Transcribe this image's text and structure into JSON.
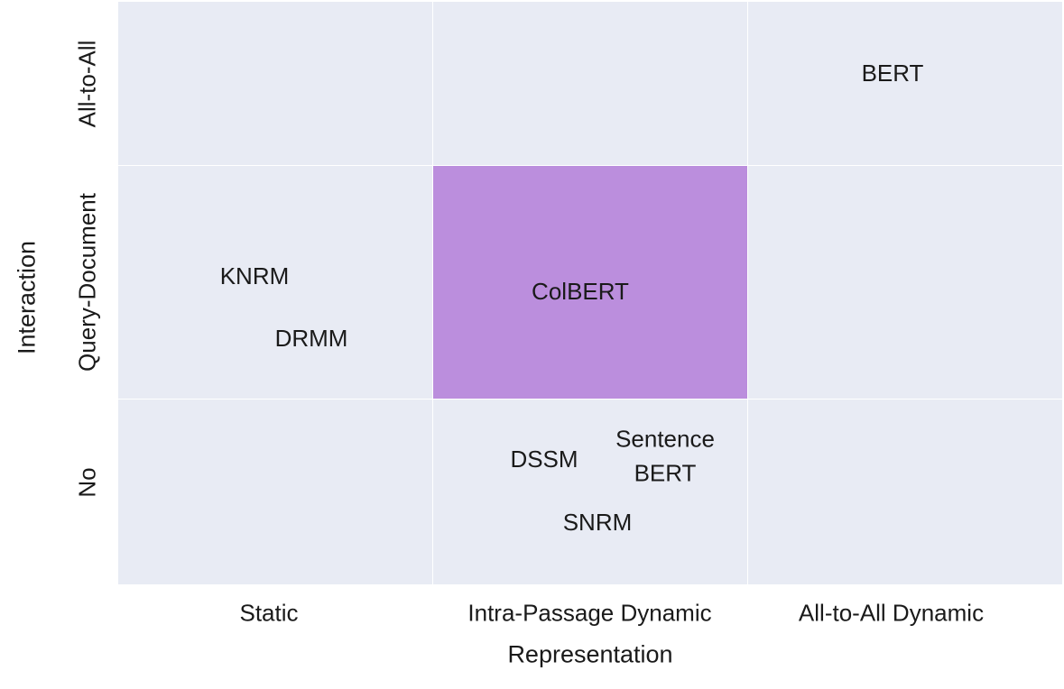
{
  "axes": {
    "x_title": "Representation",
    "y_title": "Interaction",
    "x_categories": [
      "Static",
      "Intra-Passage Dynamic",
      "All-to-All Dynamic"
    ],
    "y_categories": [
      "All-to-All",
      "Query-Document",
      "No"
    ]
  },
  "highlight": {
    "representation": "Intra-Passage Dynamic",
    "interaction": "Query-Document",
    "color": "#bb8edd"
  },
  "colors": {
    "grid_background": "#e8ebf4",
    "grid_lines": "#ffffff"
  },
  "models": [
    {
      "name": "BERT",
      "lines": [
        "BERT"
      ],
      "representation": "All-to-All Dynamic",
      "interaction": "All-to-All"
    },
    {
      "name": "KNRM",
      "lines": [
        "KNRM"
      ],
      "representation": "Static",
      "interaction": "Query-Document"
    },
    {
      "name": "DRMM",
      "lines": [
        "DRMM"
      ],
      "representation": "Static",
      "interaction": "Query-Document"
    },
    {
      "name": "ColBERT",
      "lines": [
        "ColBERT"
      ],
      "representation": "Intra-Passage Dynamic",
      "interaction": "Query-Document"
    },
    {
      "name": "DSSM",
      "lines": [
        "DSSM"
      ],
      "representation": "Intra-Passage Dynamic",
      "interaction": "No"
    },
    {
      "name": "Sentence BERT",
      "lines": [
        "Sentence",
        "BERT"
      ],
      "representation": "Intra-Passage Dynamic",
      "interaction": "No"
    },
    {
      "name": "SNRM",
      "lines": [
        "SNRM"
      ],
      "representation": "Intra-Passage Dynamic",
      "interaction": "No"
    }
  ]
}
